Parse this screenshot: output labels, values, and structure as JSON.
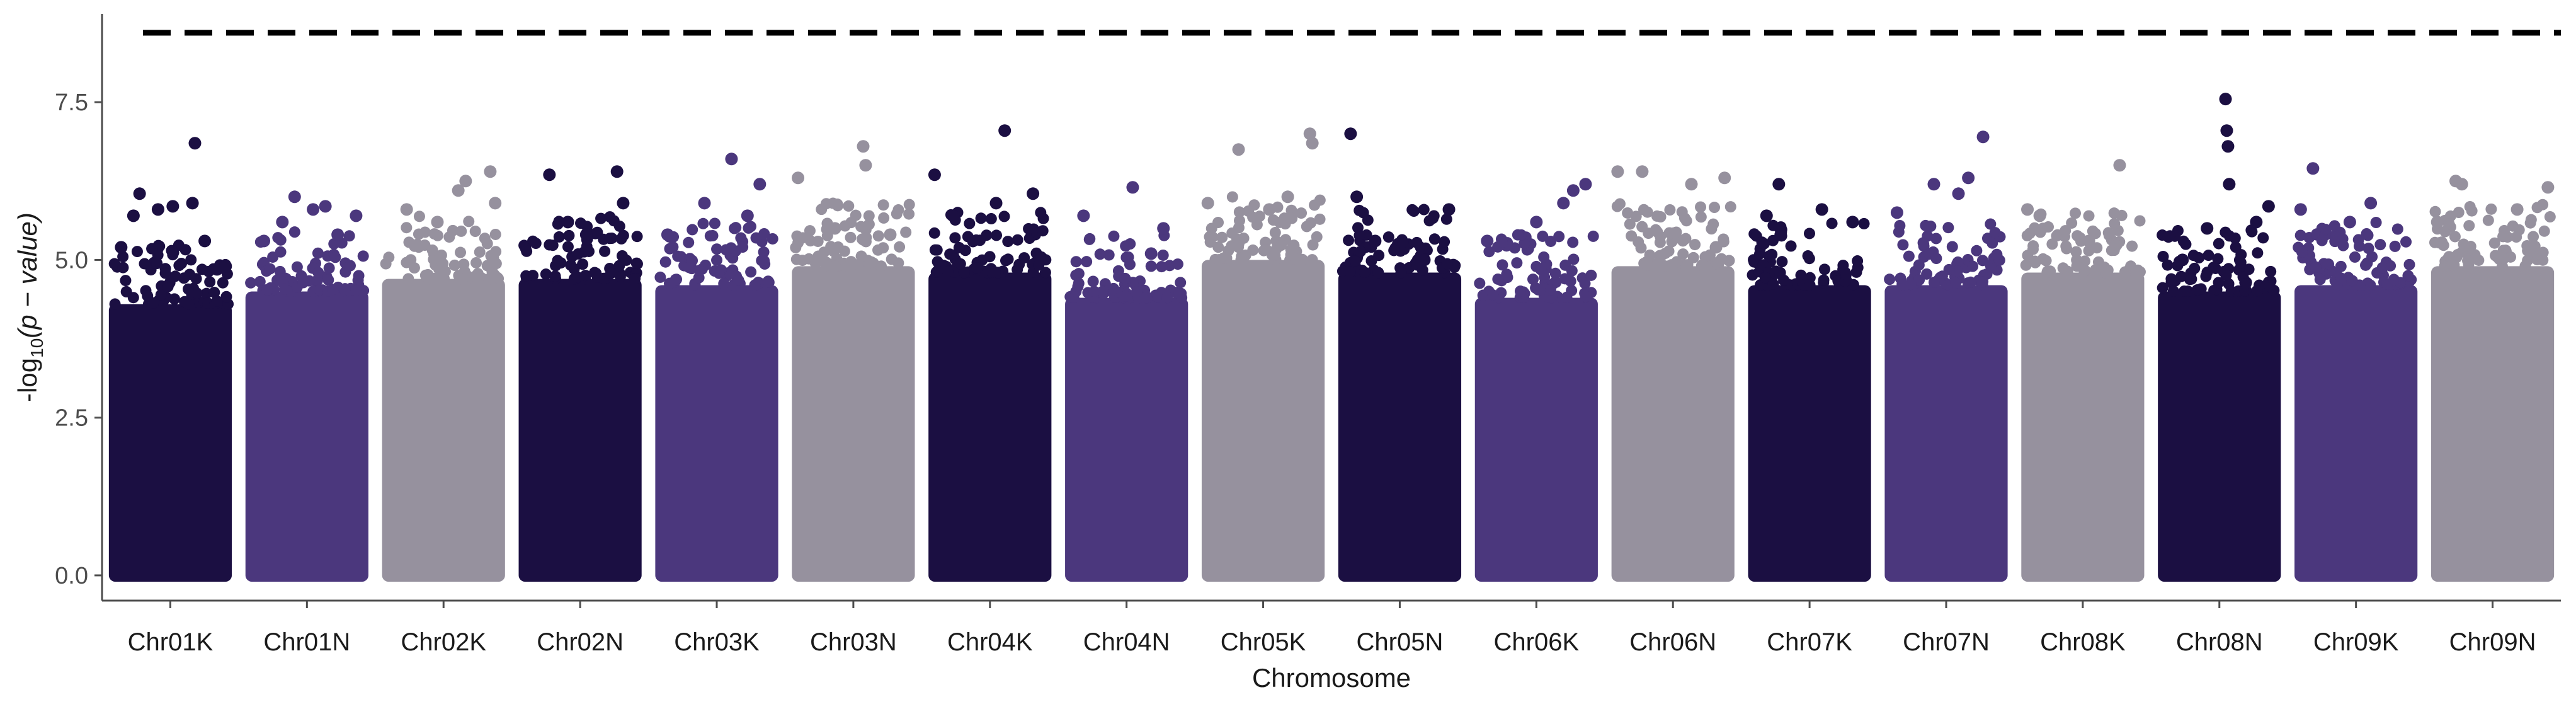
{
  "chart_data": {
    "type": "scatter",
    "title": "",
    "xlabel": "Chromosome",
    "ylabel": "-log10(p - value)",
    "ylabel_parts": {
      "prefix": "-log",
      "sub": "10",
      "italic": "(p − value)"
    },
    "ylim": [
      -0.4,
      8.9
    ],
    "yticks": [
      0.0,
      2.5,
      5.0,
      7.5
    ],
    "ytick_labels": [
      "0.0",
      "2.5",
      "5.0",
      "7.5"
    ],
    "threshold": 8.6,
    "grid": false,
    "legend": "none",
    "colors": [
      "#1b0f42",
      "#4b377d",
      "#96919e"
    ],
    "categories": [
      "Chr01K",
      "Chr01N",
      "Chr02K",
      "Chr02N",
      "Chr03K",
      "Chr03N",
      "Chr04K",
      "Chr04N",
      "Chr05K",
      "Chr05N",
      "Chr06K",
      "Chr06N",
      "Chr07K",
      "Chr07N",
      "Chr08K",
      "Chr08N",
      "Chr09K",
      "Chr09N"
    ],
    "series": [
      {
        "category": "Chr01K",
        "color_index": 0,
        "dense_top": 4.3,
        "peaks": [
          [
            0.1,
            5.2
          ],
          [
            0.2,
            5.7
          ],
          [
            0.25,
            6.05
          ],
          [
            0.4,
            5.8
          ],
          [
            0.52,
            5.85
          ],
          [
            0.68,
            5.9
          ],
          [
            0.7,
            6.85
          ],
          [
            0.78,
            5.3
          ],
          [
            0.88,
            4.85
          ],
          [
            0.95,
            4.9
          ]
        ]
      },
      {
        "category": "Chr01N",
        "color_index": 1,
        "dense_top": 4.5,
        "peaks": [
          [
            0.15,
            5.3
          ],
          [
            0.3,
            5.6
          ],
          [
            0.4,
            6.0
          ],
          [
            0.55,
            5.8
          ],
          [
            0.65,
            5.85
          ],
          [
            0.75,
            5.4
          ],
          [
            0.9,
            5.7
          ]
        ]
      },
      {
        "category": "Chr02K",
        "color_index": 2,
        "dense_top": 4.7,
        "peaks": [
          [
            0.2,
            5.8
          ],
          [
            0.45,
            5.6
          ],
          [
            0.62,
            6.1
          ],
          [
            0.68,
            6.25
          ],
          [
            0.88,
            6.4
          ],
          [
            0.92,
            5.9
          ]
        ]
      },
      {
        "category": "Chr02N",
        "color_index": 0,
        "dense_top": 4.7,
        "peaks": [
          [
            0.25,
            6.35
          ],
          [
            0.4,
            5.6
          ],
          [
            0.55,
            5.4
          ],
          [
            0.8,
            6.4
          ],
          [
            0.85,
            5.9
          ]
        ]
      },
      {
        "category": "Chr03K",
        "color_index": 1,
        "dense_top": 4.6,
        "peaks": [
          [
            0.1,
            5.4
          ],
          [
            0.4,
            5.9
          ],
          [
            0.62,
            6.6
          ],
          [
            0.75,
            5.7
          ],
          [
            0.85,
            6.2
          ]
        ]
      },
      {
        "category": "Chr03N",
        "color_index": 2,
        "dense_top": 4.9,
        "peaks": [
          [
            0.05,
            6.3
          ],
          [
            0.35,
            5.5
          ],
          [
            0.58,
            6.8
          ],
          [
            0.6,
            6.5
          ],
          [
            0.8,
            5.4
          ]
        ]
      },
      {
        "category": "Chr04K",
        "color_index": 0,
        "dense_top": 4.8,
        "peaks": [
          [
            0.05,
            6.35
          ],
          [
            0.2,
            5.7
          ],
          [
            0.55,
            5.9
          ],
          [
            0.62,
            7.05
          ],
          [
            0.85,
            6.05
          ]
        ]
      },
      {
        "category": "Chr04N",
        "color_index": 1,
        "dense_top": 4.4,
        "peaks": [
          [
            0.15,
            5.7
          ],
          [
            0.55,
            6.15
          ],
          [
            0.7,
            5.1
          ],
          [
            0.8,
            5.5
          ]
        ]
      },
      {
        "category": "Chr05K",
        "color_index": 2,
        "dense_top": 5.0,
        "peaks": [
          [
            0.05,
            5.9
          ],
          [
            0.3,
            6.75
          ],
          [
            0.55,
            5.8
          ],
          [
            0.7,
            6.0
          ],
          [
            0.88,
            7.0
          ],
          [
            0.9,
            6.85
          ]
        ]
      },
      {
        "category": "Chr05N",
        "color_index": 0,
        "dense_top": 4.8,
        "peaks": [
          [
            0.1,
            7.0
          ],
          [
            0.15,
            6.0
          ],
          [
            0.3,
            5.3
          ],
          [
            0.7,
            5.0
          ],
          [
            0.9,
            5.8
          ]
        ]
      },
      {
        "category": "Chr06K",
        "color_index": 1,
        "dense_top": 4.4,
        "peaks": [
          [
            0.1,
            5.3
          ],
          [
            0.5,
            5.6
          ],
          [
            0.72,
            5.9
          ],
          [
            0.8,
            6.1
          ],
          [
            0.9,
            6.2
          ]
        ]
      },
      {
        "category": "Chr06N",
        "color_index": 2,
        "dense_top": 4.9,
        "peaks": [
          [
            0.05,
            6.4
          ],
          [
            0.25,
            6.4
          ],
          [
            0.65,
            6.2
          ],
          [
            0.85,
            5.2
          ],
          [
            0.92,
            6.3
          ]
        ]
      },
      {
        "category": "Chr07K",
        "color_index": 0,
        "dense_top": 4.6,
        "peaks": [
          [
            0.15,
            5.7
          ],
          [
            0.25,
            6.2
          ],
          [
            0.6,
            5.8
          ],
          [
            0.85,
            5.6
          ]
        ]
      },
      {
        "category": "Chr07N",
        "color_index": 1,
        "dense_top": 4.6,
        "peaks": [
          [
            0.1,
            5.75
          ],
          [
            0.4,
            6.2
          ],
          [
            0.6,
            6.05
          ],
          [
            0.68,
            6.3
          ],
          [
            0.8,
            6.95
          ]
        ]
      },
      {
        "category": "Chr08K",
        "color_index": 2,
        "dense_top": 4.8,
        "peaks": [
          [
            0.05,
            5.8
          ],
          [
            0.15,
            5.7
          ],
          [
            0.55,
            5.3
          ],
          [
            0.8,
            6.5
          ]
        ]
      },
      {
        "category": "Chr08N",
        "color_index": 0,
        "dense_top": 4.5,
        "peaks": [
          [
            0.2,
            5.0
          ],
          [
            0.4,
            5.5
          ],
          [
            0.55,
            7.55
          ],
          [
            0.56,
            7.05
          ],
          [
            0.57,
            6.8
          ],
          [
            0.58,
            6.2
          ],
          [
            0.8,
            5.6
          ],
          [
            0.9,
            5.85
          ]
        ]
      },
      {
        "category": "Chr09K",
        "color_index": 1,
        "dense_top": 4.6,
        "peaks": [
          [
            0.05,
            5.8
          ],
          [
            0.15,
            6.45
          ],
          [
            0.45,
            5.6
          ],
          [
            0.62,
            5.9
          ]
        ]
      },
      {
        "category": "Chr09N",
        "color_index": 2,
        "dense_top": 4.9,
        "peaks": [
          [
            0.05,
            5.6
          ],
          [
            0.2,
            6.25
          ],
          [
            0.25,
            6.2
          ],
          [
            0.7,
            5.8
          ],
          [
            0.95,
            6.15
          ]
        ]
      }
    ]
  }
}
